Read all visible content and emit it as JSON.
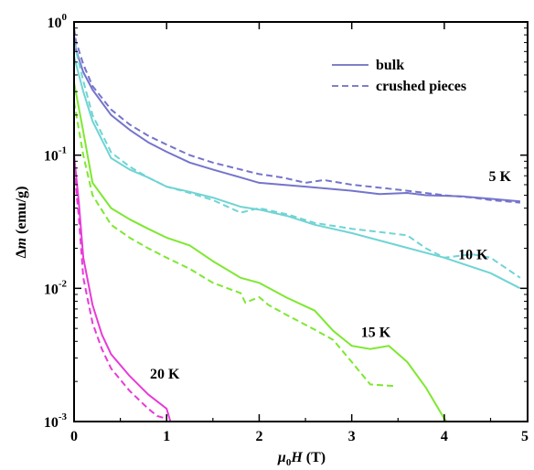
{
  "chart_data": {
    "type": "line",
    "title": "",
    "xlabel": {
      "mu": "μ",
      "sub": "0",
      "var": "H",
      "unit": " (T)"
    },
    "ylabel": {
      "delta": "Δ",
      "var": "m",
      "unit": " (emu/g)"
    },
    "xlim": [
      0,
      4.9
    ],
    "ylim": [
      0.001,
      1
    ],
    "yscale": "log",
    "grid": false,
    "x_ticks": [
      {
        "value": 0,
        "label": "0"
      },
      {
        "value": 1,
        "label": "1"
      },
      {
        "value": 2,
        "label": "2"
      },
      {
        "value": 3,
        "label": "3"
      },
      {
        "value": 4,
        "label": "4"
      },
      {
        "value": 5,
        "label": "5"
      }
    ],
    "y_ticks": [
      {
        "value": 1,
        "base": "10",
        "exp": "0"
      },
      {
        "value": 0.1,
        "base": "10",
        "exp": "-1"
      },
      {
        "value": 0.01,
        "base": "10",
        "exp": "-2"
      },
      {
        "value": 0.001,
        "base": "10",
        "exp": "-3"
      }
    ],
    "legend": {
      "position": "top-right",
      "entries": [
        {
          "label": "bulk",
          "style": "solid",
          "color": "#8080c8"
        },
        {
          "label": "crushed pieces",
          "style": "dashed",
          "color": "#8080c8"
        }
      ]
    },
    "series": [
      {
        "temp": "5 K",
        "style": "solid",
        "color": "#7474cc",
        "points": [
          [
            0,
            0.8
          ],
          [
            0.02,
            0.62
          ],
          [
            0.1,
            0.42
          ],
          [
            0.2,
            0.31
          ],
          [
            0.4,
            0.2
          ],
          [
            0.6,
            0.155
          ],
          [
            0.8,
            0.125
          ],
          [
            1,
            0.106
          ],
          [
            1.25,
            0.088
          ],
          [
            1.5,
            0.078
          ],
          [
            1.8,
            0.068
          ],
          [
            2,
            0.062
          ],
          [
            2.5,
            0.058
          ],
          [
            3,
            0.054
          ],
          [
            3.3,
            0.051
          ],
          [
            3.6,
            0.052
          ],
          [
            3.8,
            0.05
          ],
          [
            4.2,
            0.049
          ],
          [
            4.5,
            0.047
          ],
          [
            4.82,
            0.045
          ]
        ]
      },
      {
        "temp": "5 K",
        "style": "dashed",
        "color": "#7474cc",
        "points": [
          [
            0,
            0.9
          ],
          [
            0.02,
            0.72
          ],
          [
            0.1,
            0.48
          ],
          [
            0.2,
            0.33
          ],
          [
            0.4,
            0.22
          ],
          [
            0.6,
            0.17
          ],
          [
            0.8,
            0.14
          ],
          [
            1,
            0.12
          ],
          [
            1.25,
            0.1
          ],
          [
            1.5,
            0.088
          ],
          [
            1.8,
            0.078
          ],
          [
            2,
            0.072
          ],
          [
            2.25,
            0.068
          ],
          [
            2.5,
            0.062
          ],
          [
            2.7,
            0.065
          ],
          [
            3,
            0.06
          ],
          [
            3.3,
            0.057
          ],
          [
            3.6,
            0.054
          ],
          [
            4,
            0.05
          ],
          [
            4.3,
            0.048
          ],
          [
            4.5,
            0.046
          ],
          [
            4.82,
            0.044
          ]
        ]
      },
      {
        "temp": "10 K",
        "style": "solid",
        "color": "#70d4d4",
        "points": [
          [
            0,
            0.55
          ],
          [
            0.1,
            0.3
          ],
          [
            0.2,
            0.18
          ],
          [
            0.4,
            0.095
          ],
          [
            0.6,
            0.078
          ],
          [
            0.8,
            0.068
          ],
          [
            1,
            0.058
          ],
          [
            1.25,
            0.053
          ],
          [
            1.5,
            0.048
          ],
          [
            1.8,
            0.041
          ],
          [
            2,
            0.039
          ],
          [
            2.3,
            0.035
          ],
          [
            2.6,
            0.03
          ],
          [
            3,
            0.026
          ],
          [
            3.5,
            0.021
          ],
          [
            4,
            0.017
          ],
          [
            4.5,
            0.013
          ],
          [
            4.82,
            0.01
          ]
        ]
      },
      {
        "temp": "10 K",
        "style": "dashed",
        "color": "#70d4d4",
        "points": [
          [
            0,
            0.7
          ],
          [
            0.1,
            0.36
          ],
          [
            0.2,
            0.2
          ],
          [
            0.4,
            0.105
          ],
          [
            0.6,
            0.082
          ],
          [
            0.8,
            0.068
          ],
          [
            1,
            0.058
          ],
          [
            1.25,
            0.052
          ],
          [
            1.5,
            0.046
          ],
          [
            1.8,
            0.037
          ],
          [
            2,
            0.04
          ],
          [
            2.3,
            0.036
          ],
          [
            2.6,
            0.031
          ],
          [
            3,
            0.028
          ],
          [
            3.4,
            0.026
          ],
          [
            3.6,
            0.025
          ],
          [
            3.8,
            0.02
          ],
          [
            4,
            0.017
          ],
          [
            4.3,
            0.018
          ],
          [
            4.5,
            0.017
          ],
          [
            4.82,
            0.012
          ]
        ]
      },
      {
        "temp": "15 K",
        "style": "solid",
        "color": "#7ee830",
        "points": [
          [
            0,
            0.35
          ],
          [
            0.1,
            0.15
          ],
          [
            0.2,
            0.062
          ],
          [
            0.4,
            0.04
          ],
          [
            0.6,
            0.033
          ],
          [
            0.8,
            0.028
          ],
          [
            1,
            0.024
          ],
          [
            1.25,
            0.021
          ],
          [
            1.5,
            0.016
          ],
          [
            1.8,
            0.012
          ],
          [
            2,
            0.011
          ],
          [
            2.3,
            0.0085
          ],
          [
            2.6,
            0.0068
          ],
          [
            2.8,
            0.0048
          ],
          [
            3,
            0.0037
          ],
          [
            3.2,
            0.0035
          ],
          [
            3.4,
            0.0037
          ],
          [
            3.6,
            0.0028
          ],
          [
            3.8,
            0.0018
          ],
          [
            4,
            0.00105
          ],
          [
            4.05,
            0.00095
          ]
        ]
      },
      {
        "temp": "15 K",
        "style": "dashed",
        "color": "#7ee830",
        "points": [
          [
            0,
            0.25
          ],
          [
            0.1,
            0.1
          ],
          [
            0.2,
            0.05
          ],
          [
            0.4,
            0.03
          ],
          [
            0.6,
            0.024
          ],
          [
            0.8,
            0.02
          ],
          [
            1,
            0.017
          ],
          [
            1.25,
            0.014
          ],
          [
            1.5,
            0.011
          ],
          [
            1.8,
            0.0092
          ],
          [
            1.85,
            0.0078
          ],
          [
            2,
            0.0086
          ],
          [
            2.1,
            0.0075
          ],
          [
            2.3,
            0.0063
          ],
          [
            2.6,
            0.0049
          ],
          [
            2.8,
            0.0041
          ],
          [
            3,
            0.0028
          ],
          [
            3.2,
            0.0019
          ],
          [
            3.45,
            0.00185
          ]
        ]
      },
      {
        "temp": "20 K",
        "style": "solid",
        "color": "#e83ad8",
        "points": [
          [
            0,
            0.1
          ],
          [
            0.05,
            0.045
          ],
          [
            0.1,
            0.017
          ],
          [
            0.2,
            0.0075
          ],
          [
            0.3,
            0.0045
          ],
          [
            0.4,
            0.0032
          ],
          [
            0.6,
            0.0022
          ],
          [
            0.8,
            0.0016
          ],
          [
            1,
            0.00125
          ],
          [
            1.05,
            0.00095
          ]
        ]
      },
      {
        "temp": "20 K",
        "style": "dashed",
        "color": "#e83ad8",
        "points": [
          [
            0,
            0.08
          ],
          [
            0.05,
            0.035
          ],
          [
            0.1,
            0.012
          ],
          [
            0.2,
            0.0055
          ],
          [
            0.3,
            0.0035
          ],
          [
            0.4,
            0.0025
          ],
          [
            0.6,
            0.0017
          ],
          [
            0.8,
            0.00125
          ],
          [
            0.9,
            0.0011
          ],
          [
            1,
            0.00105
          ]
        ]
      }
    ],
    "annotations": [
      {
        "text": "5 K",
        "x": 4.48,
        "y": 0.064
      },
      {
        "text": "10 K",
        "x": 4.15,
        "y": 0.0165
      },
      {
        "text": "15 K",
        "x": 3.1,
        "y": 0.0043
      },
      {
        "text": "20 K",
        "x": 0.82,
        "y": 0.0021
      }
    ]
  }
}
